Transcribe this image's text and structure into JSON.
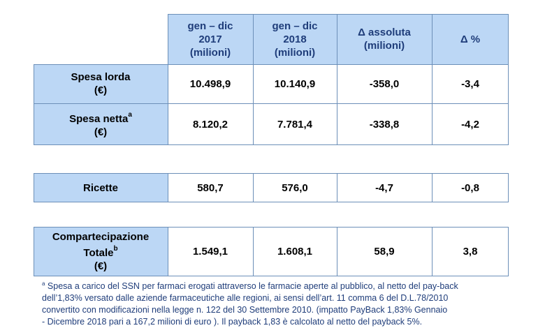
{
  "header": {
    "col1": [
      "gen – dic",
      "2017",
      "(milioni)"
    ],
    "col2": [
      "gen – dic",
      "2018",
      "(milioni)"
    ],
    "col3": [
      "Δ assoluta",
      "(milioni)"
    ],
    "col4": [
      "Δ %"
    ]
  },
  "rows": {
    "spesa_lorda": {
      "label": "Spesa lorda",
      "unit": "(€)",
      "v2017": "10.498,9",
      "v2018": "10.140,9",
      "delta": "-358,0",
      "pct": "-3,4"
    },
    "spesa_netta": {
      "label": "Spesa netta",
      "sup": "a",
      "unit": "(€)",
      "v2017": "8.120,2",
      "v2018": "7.781,4",
      "delta": "-338,8",
      "pct": "-4,2"
    },
    "ricette": {
      "label": "Ricette",
      "v2017": "580,7",
      "v2018": "576,0",
      "delta": "-4,7",
      "pct": "-0,8"
    },
    "compartecipazione": {
      "label1": "Compartecipazione",
      "label2": "Totale",
      "sup": "b",
      "unit": "(€)",
      "v2017": "1.549,1",
      "v2018": "1.608,1",
      "delta": "58,9",
      "pct": "3,8"
    }
  },
  "footnote": {
    "marker": "a",
    "lines": [
      " Spesa a carico del SSN per farmaci erogati attraverso le farmacie aperte al pubblico, al netto del pay-back",
      "dell’1,83% versato dalle aziende farmaceutiche alle regioni, ai sensi dell’art. 11 comma 6 del D.L.78/2010",
      "convertito con modificazioni nella legge n. 122 del 30 Settembre 2010.  (impatto PayBack 1,83% Gennaio",
      "- Dicembre  2018 pari a 167,2 milioni di euro ).  Il payback 1,83 è calcolato al netto del payback 5%."
    ]
  }
}
